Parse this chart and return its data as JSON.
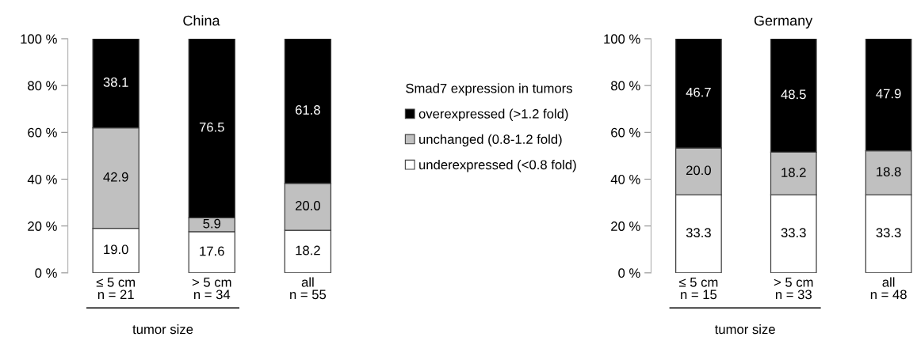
{
  "chart_data": [
    {
      "type": "bar",
      "title": "China",
      "stacked": true,
      "legend": "right",
      "legend_title": "Smad7 expression in tumors",
      "categories": [
        "≤ 5 cm\nn = 21",
        "> 5 cm\nn = 34",
        "all\nn = 55"
      ],
      "ylim": [
        0,
        100
      ],
      "yticks": [
        {
          "value": 0,
          "label": "0 %"
        },
        {
          "value": 20,
          "label": "20 %"
        },
        {
          "value": 40,
          "label": "40 %"
        },
        {
          "value": 60,
          "label": "60 %"
        },
        {
          "value": 80,
          "label": "80 %"
        },
        {
          "value": 100,
          "label": "100 %"
        }
      ],
      "series": [
        {
          "name": "underexpressed (<0.8 fold)",
          "color": "#ffffff",
          "values": [
            19.0,
            17.6,
            18.2
          ],
          "value_labels": [
            "19.0",
            "17.6",
            "18.2"
          ]
        },
        {
          "name": "unchanged (0.8-1.2 fold)",
          "color": "#c0c0c0",
          "values": [
            42.9,
            5.9,
            20.0
          ],
          "value_labels": [
            "42.9",
            "5.9",
            "20.0"
          ]
        },
        {
          "name": "overexpressed (>1.2 fold)",
          "color": "#000000",
          "values": [
            38.1,
            76.5,
            61.8
          ],
          "value_labels": [
            "38.1",
            "76.5",
            "61.8"
          ]
        }
      ],
      "annotations": [
        "tumor size"
      ]
    },
    {
      "type": "bar",
      "title": "Germany",
      "stacked": true,
      "categories": [
        "≤ 5 cm\nn = 15",
        "> 5 cm\nn = 33",
        "all\nn = 48"
      ],
      "ylim": [
        0,
        100
      ],
      "yticks": [
        {
          "value": 0,
          "label": "0 %"
        },
        {
          "value": 20,
          "label": "20 %"
        },
        {
          "value": 40,
          "label": "40 %"
        },
        {
          "value": 60,
          "label": "60 %"
        },
        {
          "value": 80,
          "label": "80 %"
        },
        {
          "value": 100,
          "label": "100 %"
        }
      ],
      "series": [
        {
          "color": "#ffffff",
          "values": [
            33.3,
            33.3,
            33.3
          ],
          "value_labels": [
            "33.3",
            "33.3",
            "33.3"
          ]
        },
        {
          "color": "#c0c0c0",
          "values": [
            20.0,
            18.2,
            18.8
          ],
          "value_labels": [
            "20.0",
            "18.2",
            "18.8"
          ]
        },
        {
          "color": "#000000",
          "values": [
            46.7,
            48.5,
            47.9
          ],
          "value_labels": [
            "46.7",
            "48.5",
            "47.9"
          ]
        }
      ],
      "annotations": [
        "tumor size"
      ]
    }
  ]
}
